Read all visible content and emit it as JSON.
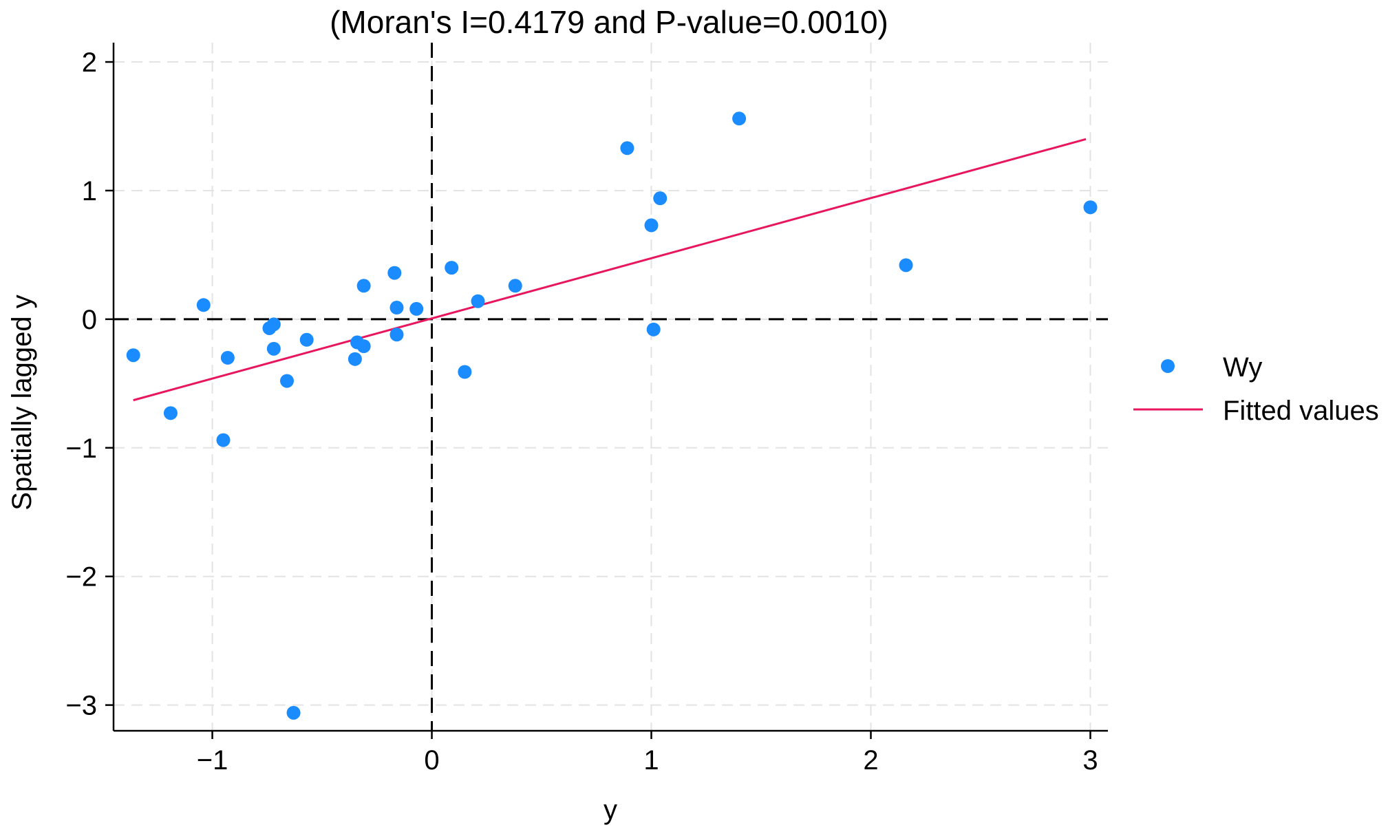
{
  "chart_data": {
    "type": "scatter",
    "title": "(Moran's I=0.4179 and P-value=0.0010)",
    "xlabel": "y",
    "ylabel": "Spatially lagged y",
    "xlim": [
      -1.45,
      3.08
    ],
    "ylim": [
      -3.2,
      2.15
    ],
    "xticks": [
      -1,
      0,
      1,
      2,
      3
    ],
    "yticks": [
      -3,
      -2,
      -1,
      0,
      1,
      2
    ],
    "xtick_labels": [
      "−1",
      "0",
      "1",
      "2",
      "3"
    ],
    "ytick_labels": [
      "−3",
      "−2",
      "−1",
      "0",
      "1",
      "2"
    ],
    "grid": true,
    "legend_position": "right",
    "reference_lines": {
      "x": 0,
      "y": 0
    },
    "series": [
      {
        "name": "Wy",
        "kind": "scatter",
        "color": "#1a8cff",
        "points": [
          [
            -1.36,
            -0.28
          ],
          [
            -1.19,
            -0.73
          ],
          [
            -1.04,
            0.11
          ],
          [
            -0.95,
            -0.94
          ],
          [
            -0.93,
            -0.3
          ],
          [
            -0.74,
            -0.07
          ],
          [
            -0.72,
            -0.04
          ],
          [
            -0.72,
            -0.23
          ],
          [
            -0.66,
            -0.48
          ],
          [
            -0.63,
            -3.06
          ],
          [
            -0.57,
            -0.16
          ],
          [
            -0.35,
            -0.31
          ],
          [
            -0.34,
            -0.18
          ],
          [
            -0.31,
            0.26
          ],
          [
            -0.31,
            -0.21
          ],
          [
            -0.17,
            0.36
          ],
          [
            -0.16,
            0.09
          ],
          [
            -0.16,
            -0.12
          ],
          [
            -0.07,
            0.08
          ],
          [
            0.09,
            0.4
          ],
          [
            0.15,
            -0.41
          ],
          [
            0.21,
            0.14
          ],
          [
            0.38,
            0.26
          ],
          [
            0.89,
            1.33
          ],
          [
            1.0,
            0.73
          ],
          [
            1.01,
            -0.08
          ],
          [
            1.04,
            0.94
          ],
          [
            1.4,
            1.56
          ],
          [
            2.16,
            0.42
          ],
          [
            3.0,
            0.87
          ]
        ]
      },
      {
        "name": "Fitted values",
        "kind": "line",
        "color": "#e8175d",
        "points": [
          [
            -1.36,
            -0.63
          ],
          [
            2.98,
            1.4
          ]
        ]
      }
    ]
  }
}
